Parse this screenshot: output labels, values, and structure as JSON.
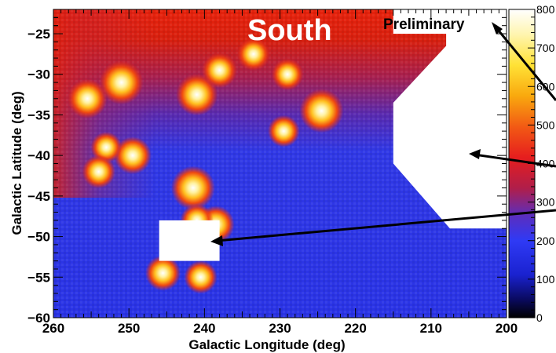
{
  "chart_data": {
    "type": "heatmap",
    "title": "South",
    "annotation": "Preliminary",
    "xlabel": "Galactic Longitude (deg)",
    "ylabel": "Galactic Latitude (deg)",
    "xlim": [
      260,
      200
    ],
    "ylim": [
      -60,
      -22
    ],
    "x_reversed": true,
    "x_ticks": [
      260,
      250,
      240,
      230,
      220,
      210,
      200
    ],
    "x_tick_labels": [
      "260",
      "250",
      "240",
      "230",
      "220",
      "210",
      "200"
    ],
    "y_ticks": [
      -25,
      -30,
      -35,
      -40,
      -45,
      -50,
      -55,
      -60
    ],
    "y_tick_labels": [
      "−25",
      "−30",
      "−35",
      "−40",
      "−45",
      "−50",
      "−55",
      "−60"
    ],
    "colorbar": {
      "range": [
        0,
        800
      ],
      "ticks": [
        0,
        100,
        200,
        300,
        400,
        500,
        600,
        700,
        800
      ],
      "tick_labels": [
        "0",
        "100",
        "200",
        "300",
        "400",
        "500",
        "600",
        "700",
        "800"
      ],
      "colormap": "blue-red-yellow-white"
    },
    "sources": [
      {
        "l": 251,
        "b": -31,
        "value": 800
      },
      {
        "l": 255.5,
        "b": -33,
        "value": 700
      },
      {
        "l": 241,
        "b": -32.5,
        "value": 750
      },
      {
        "l": 238,
        "b": -29.5,
        "value": 600
      },
      {
        "l": 233.5,
        "b": -27.5,
        "value": 550
      },
      {
        "l": 229,
        "b": -30,
        "value": 520
      },
      {
        "l": 224.5,
        "b": -34.5,
        "value": 800
      },
      {
        "l": 229.5,
        "b": -37,
        "value": 520
      },
      {
        "l": 249.5,
        "b": -40,
        "value": 650
      },
      {
        "l": 253,
        "b": -39,
        "value": 500
      },
      {
        "l": 254,
        "b": -42,
        "value": 550
      },
      {
        "l": 241.5,
        "b": -44,
        "value": 800
      },
      {
        "l": 238.5,
        "b": -48.5,
        "value": 650
      },
      {
        "l": 241,
        "b": -48,
        "value": 550
      },
      {
        "l": 245.5,
        "b": -54.5,
        "value": 600
      },
      {
        "l": 240.5,
        "b": -55,
        "value": 550
      }
    ],
    "masked_regions": [
      {
        "shape": "rectangle",
        "l": [
          246,
          238
        ],
        "b": [
          -48,
          -53
        ]
      },
      {
        "shape": "polygon",
        "vertices_lb": [
          [
            215,
            -33.5
          ],
          [
            208,
            -26.5
          ],
          [
            208,
            -22
          ],
          [
            200,
            -22
          ],
          [
            200,
            -49
          ],
          [
            207.5,
            -49
          ],
          [
            215,
            -41
          ]
        ]
      },
      {
        "shape": "rectangle",
        "l": [
          215,
          201
        ],
        "b": [
          -22,
          -25
        ]
      }
    ]
  }
}
